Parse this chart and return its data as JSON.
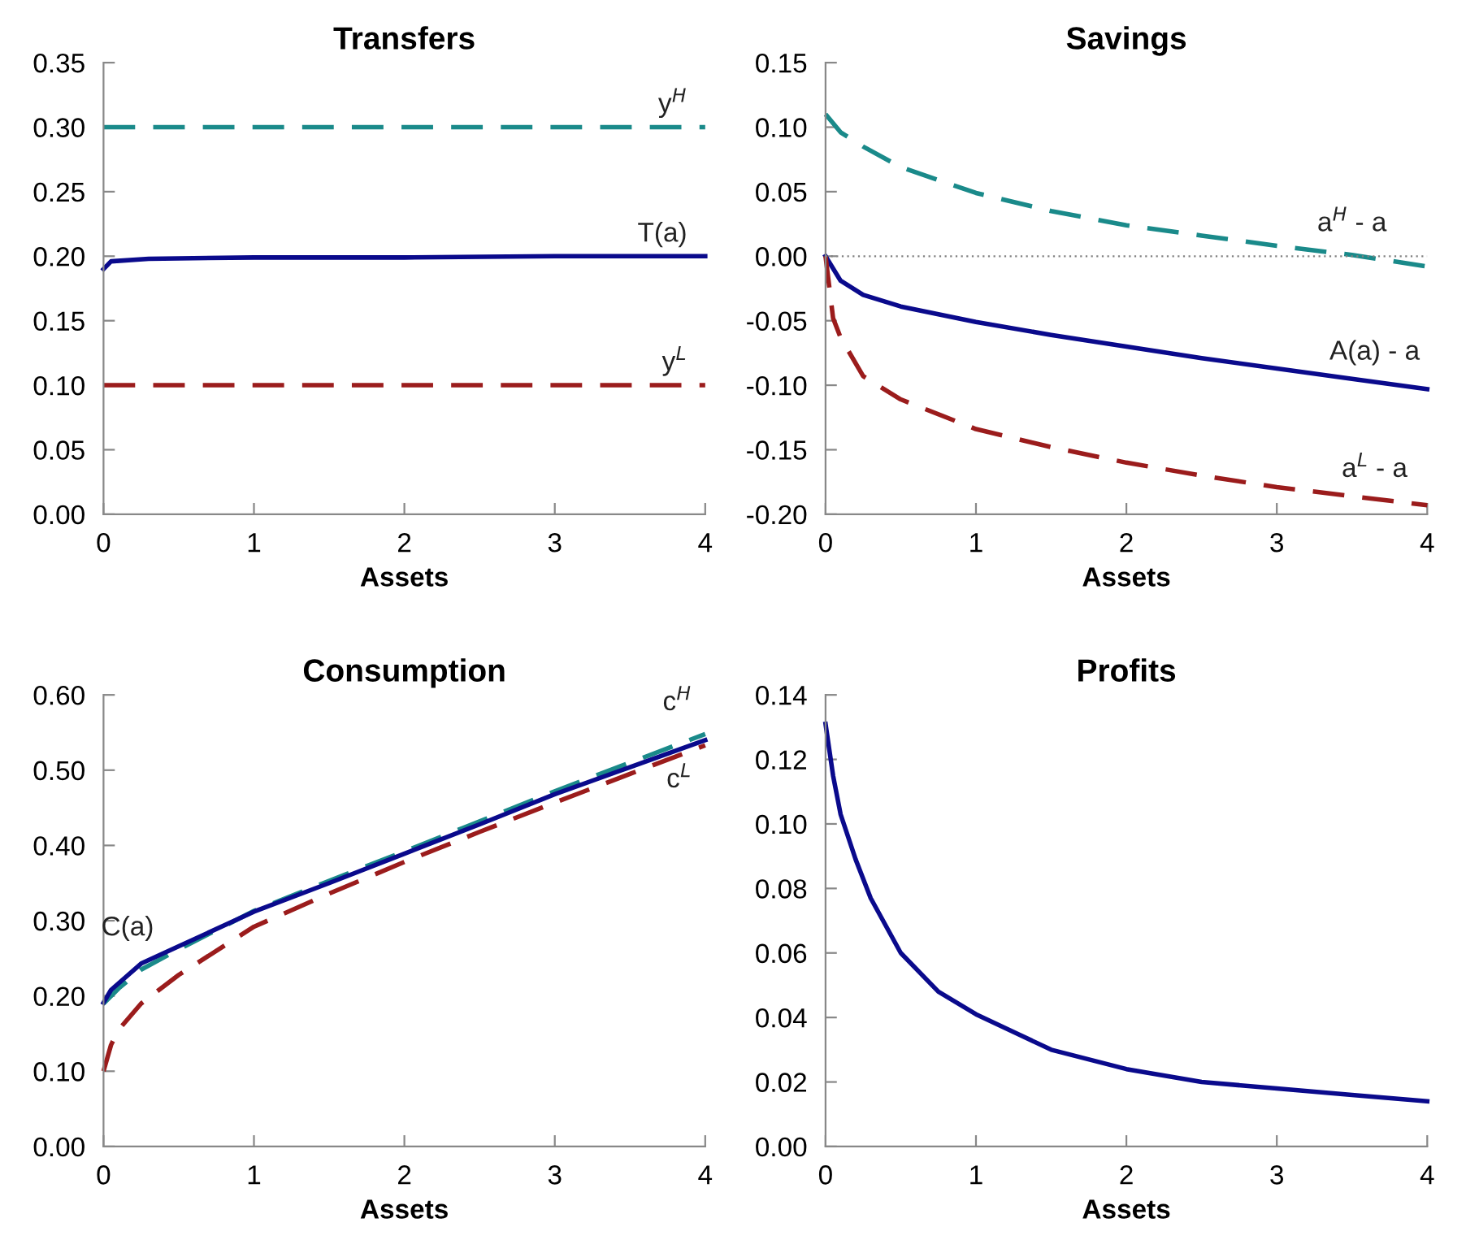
{
  "chart_data": [
    {
      "type": "line",
      "title": "Transfers",
      "xlabel": "Assets",
      "xlim": [
        0,
        4
      ],
      "xticks": [
        0,
        1,
        2,
        3,
        4
      ],
      "ylim": [
        0,
        0.35
      ],
      "yticks": [
        {
          "value": 0,
          "label": "0.00"
        },
        {
          "value": 0.05,
          "label": "0.05"
        },
        {
          "value": 0.1,
          "label": "0.10"
        },
        {
          "value": 0.15,
          "label": "0.15"
        },
        {
          "value": 0.2,
          "label": "0.20"
        },
        {
          "value": 0.25,
          "label": "0.25"
        },
        {
          "value": 0.3,
          "label": "0.30"
        },
        {
          "value": 0.35,
          "label": "0.35"
        }
      ],
      "grid": false,
      "legend": false,
      "series": [
        {
          "name": "y$^{H}$",
          "color": "#1a8a8a",
          "line_style": "dashed",
          "x": [
            0,
            4
          ],
          "values": [
            0.3,
            0.3
          ]
        },
        {
          "name": "T(a)",
          "color": "#0a0a8c",
          "line_style": "solid",
          "x": [
            0,
            0.05,
            0.3,
            1,
            2,
            3,
            4
          ],
          "values": [
            0.19,
            0.196,
            0.198,
            0.199,
            0.199,
            0.2,
            0.2
          ]
        },
        {
          "name": "y$^{L}$",
          "color": "#9b1c1c",
          "line_style": "dashed",
          "x": [
            0,
            4
          ],
          "values": [
            0.1,
            0.1
          ]
        }
      ]
    },
    {
      "type": "line",
      "title": "Savings",
      "xlabel": "Assets",
      "xlim": [
        0,
        4
      ],
      "xticks": [
        0,
        1,
        2,
        3,
        4
      ],
      "ylim": [
        -0.2,
        0.15
      ],
      "yticks": [
        {
          "value": -0.2,
          "label": "-0.20"
        },
        {
          "value": -0.15,
          "label": "-0.15"
        },
        {
          "value": -0.1,
          "label": "-0.10"
        },
        {
          "value": -0.05,
          "label": "-0.05"
        },
        {
          "value": 0,
          "label": "0.00"
        },
        {
          "value": 0.05,
          "label": "0.05"
        },
        {
          "value": 0.1,
          "label": "0.10"
        },
        {
          "value": 0.15,
          "label": "0.15"
        }
      ],
      "grid": false,
      "legend": false,
      "ref_lines": [
        {
          "axis": "y",
          "value": 0,
          "label": null,
          "color": "#808080",
          "line_style": "dotted"
        }
      ],
      "series": [
        {
          "name": "a$^{H}$ - a",
          "color": "#1a8a8a",
          "line_style": "dashed",
          "x": [
            0,
            0.1,
            0.25,
            0.5,
            1,
            1.5,
            2,
            2.5,
            3,
            3.5,
            4
          ],
          "values": [
            0.11,
            0.096,
            0.085,
            0.069,
            0.049,
            0.035,
            0.024,
            0.016,
            0.008,
            0.001,
            -0.008
          ]
        },
        {
          "name": "A(a) - a",
          "color": "#0a0a8c",
          "line_style": "solid",
          "x": [
            0,
            0.1,
            0.25,
            0.5,
            1,
            1.5,
            2,
            2.5,
            3,
            3.5,
            4
          ],
          "values": [
            0,
            -0.019,
            -0.03,
            -0.039,
            -0.051,
            -0.061,
            -0.07,
            -0.079,
            -0.087,
            -0.095,
            -0.103
          ]
        },
        {
          "name": "a$^{L}$ - a",
          "color": "#9b1c1c",
          "line_style": "dashed",
          "x": [
            0,
            0.05,
            0.1,
            0.25,
            0.5,
            1,
            1.5,
            2,
            2.5,
            3,
            3.5,
            4
          ],
          "values": [
            0,
            -0.048,
            -0.063,
            -0.093,
            -0.111,
            -0.134,
            -0.148,
            -0.16,
            -0.17,
            -0.179,
            -0.186,
            -0.193
          ]
        }
      ]
    },
    {
      "type": "line",
      "title": "Consumption",
      "xlabel": "Assets",
      "xlim": [
        0,
        4
      ],
      "xticks": [
        0,
        1,
        2,
        3,
        4
      ],
      "ylim": [
        0,
        0.6
      ],
      "yticks": [
        {
          "value": 0,
          "label": "0.00"
        },
        {
          "value": 0.1,
          "label": "0.10"
        },
        {
          "value": 0.2,
          "label": "0.20"
        },
        {
          "value": 0.3,
          "label": "0.30"
        },
        {
          "value": 0.4,
          "label": "0.40"
        },
        {
          "value": 0.5,
          "label": "0.50"
        },
        {
          "value": 0.6,
          "label": "0.60"
        }
      ],
      "grid": false,
      "legend": false,
      "series": [
        {
          "name": "c$^{H}$",
          "color": "#1a8a8a",
          "line_style": "dashed",
          "x": [
            0,
            0.1,
            0.25,
            0.5,
            1,
            1.5,
            2,
            2.5,
            3,
            3.5,
            4
          ],
          "values": [
            0.19,
            0.21,
            0.235,
            0.262,
            0.313,
            0.353,
            0.392,
            0.432,
            0.472,
            0.51,
            0.548
          ]
        },
        {
          "name": "C(a)",
          "color": "#0a0a8c",
          "line_style": "solid",
          "x": [
            0,
            0.05,
            0.25,
            0.5,
            1,
            1.5,
            2,
            2.5,
            3,
            3.5,
            4
          ],
          "values": [
            0.191,
            0.208,
            0.243,
            0.266,
            0.312,
            0.35,
            0.389,
            0.428,
            0.468,
            0.504,
            0.54
          ]
        },
        {
          "name": "c$^{L}$",
          "color": "#9b1c1c",
          "line_style": "dashed",
          "x": [
            0,
            0.05,
            0.1,
            0.25,
            0.5,
            1,
            1.5,
            2,
            2.5,
            3,
            3.5,
            4
          ],
          "values": [
            0.1,
            0.135,
            0.155,
            0.19,
            0.228,
            0.292,
            0.336,
            0.378,
            0.418,
            0.457,
            0.495,
            0.533
          ]
        }
      ]
    },
    {
      "type": "line",
      "title": "Profits",
      "xlabel": "Assets",
      "xlim": [
        0,
        4
      ],
      "xticks": [
        0,
        1,
        2,
        3,
        4
      ],
      "ylim": [
        0,
        0.14
      ],
      "yticks": [
        {
          "value": 0,
          "label": "0.00"
        },
        {
          "value": 0.02,
          "label": "0.02"
        },
        {
          "value": 0.04,
          "label": "0.04"
        },
        {
          "value": 0.06,
          "label": "0.06"
        },
        {
          "value": 0.08,
          "label": "0.08"
        },
        {
          "value": 0.1,
          "label": "0.10"
        },
        {
          "value": 0.12,
          "label": "0.12"
        },
        {
          "value": 0.14,
          "label": "0.14"
        }
      ],
      "grid": false,
      "legend": false,
      "series": [
        {
          "color": "#0a0a8c",
          "line_style": "solid",
          "x": [
            0,
            0.05,
            0.1,
            0.2,
            0.3,
            0.5,
            0.75,
            1,
            1.5,
            2,
            2.5,
            3,
            3.5,
            4
          ],
          "values": [
            0.131,
            0.115,
            0.103,
            0.089,
            0.077,
            0.06,
            0.048,
            0.041,
            0.03,
            0.024,
            0.02,
            0.018,
            0.016,
            0.014
          ]
        }
      ]
    }
  ]
}
